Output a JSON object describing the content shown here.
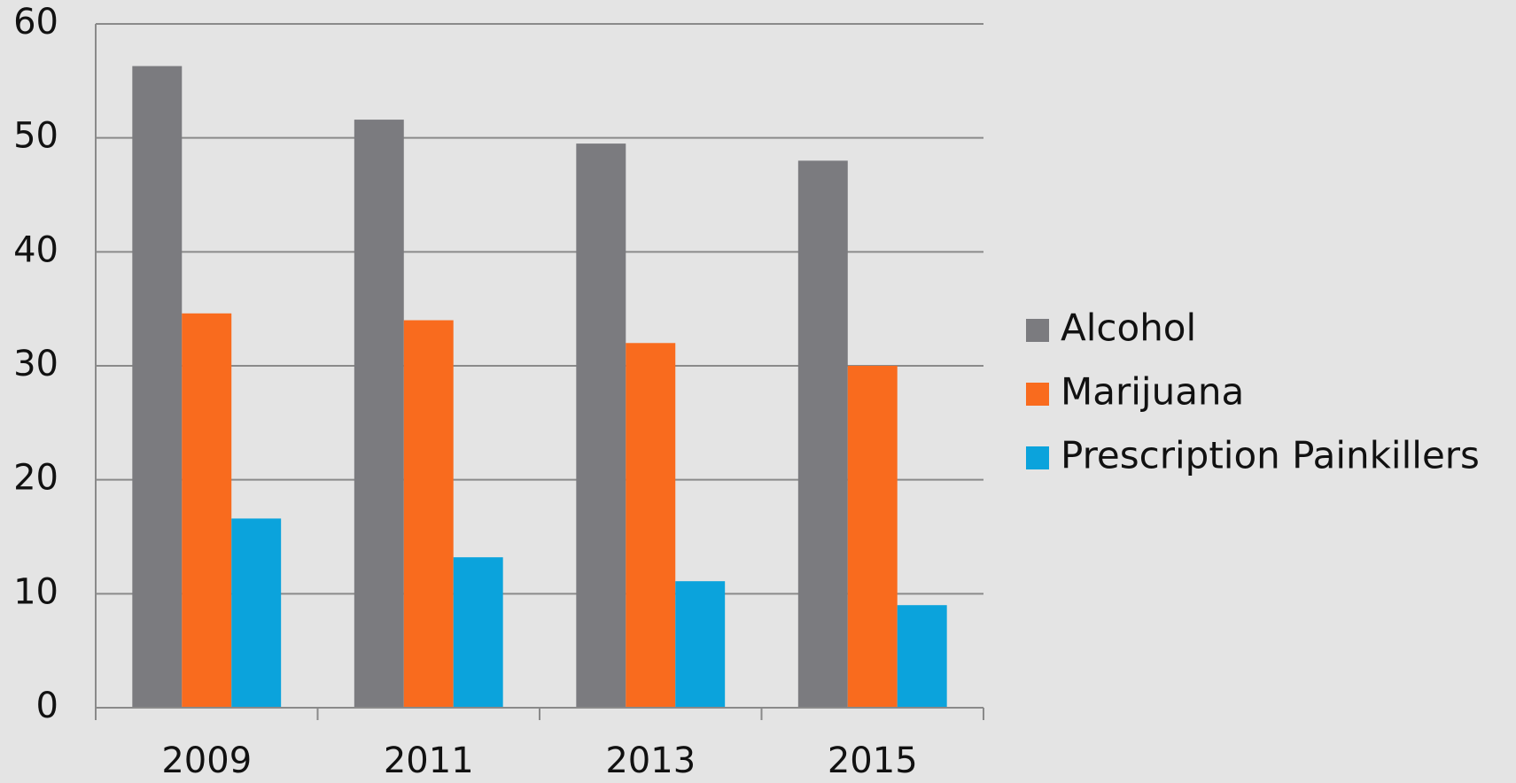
{
  "chart_data": {
    "type": "bar",
    "categories": [
      "2009",
      "2011",
      "2013",
      "2015"
    ],
    "series": [
      {
        "name": "Alcohol",
        "color": "#7b7b7f",
        "values": [
          56.3,
          51.6,
          49.5,
          48.0
        ]
      },
      {
        "name": "Marijuana",
        "color": "#f96b1e",
        "values": [
          34.6,
          34.0,
          32.0,
          30.0
        ]
      },
      {
        "name": "Prescription Painkillers",
        "color": "#0ba3dc",
        "values": [
          16.6,
          13.2,
          11.1,
          9.0
        ]
      }
    ],
    "ylim": [
      0,
      60
    ],
    "yticks": [
      0,
      10,
      20,
      30,
      40,
      50,
      60
    ],
    "grid": true,
    "legend": "right"
  }
}
